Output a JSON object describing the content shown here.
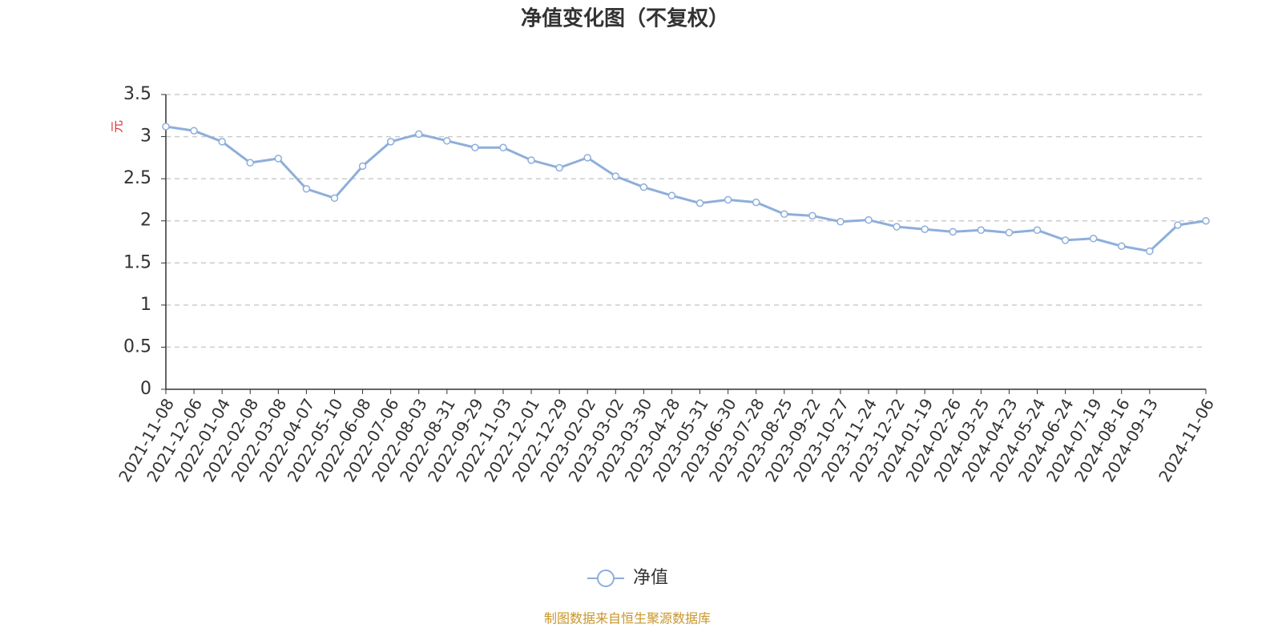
{
  "chart_data": {
    "type": "line",
    "title": "净值变化图（不复权）",
    "y_label": "元",
    "source": "制图数据来自恒生聚源数据库",
    "categories": [
      "2021-11-08",
      "2021-12-06",
      "2022-01-04",
      "2022-02-08",
      "2022-03-08",
      "2022-04-07",
      "2022-05-10",
      "2022-06-08",
      "2022-07-06",
      "2022-08-03",
      "2022-08-31",
      "2022-09-29",
      "2022-11-03",
      "2022-12-01",
      "2022-12-29",
      "2023-02-02",
      "2023-03-02",
      "2023-03-30",
      "2023-04-28",
      "2023-05-31",
      "2023-06-30",
      "2023-07-28",
      "2023-08-25",
      "2023-09-22",
      "2023-10-27",
      "2023-11-24",
      "2023-12-22",
      "2024-01-19",
      "2024-02-26",
      "2024-03-25",
      "2024-04-23",
      "2024-05-24",
      "2024-06-24",
      "2024-07-19",
      "2024-08-16",
      "2024-09-13",
      null,
      "2024-11-06"
    ],
    "series": [
      {
        "name": "净值",
        "color": "#8eaedb",
        "values": [
          3.12,
          3.07,
          2.94,
          2.69,
          2.74,
          2.38,
          2.27,
          2.65,
          2.94,
          3.03,
          2.95,
          2.87,
          2.87,
          2.72,
          2.63,
          2.75,
          2.53,
          2.4,
          2.3,
          2.21,
          2.25,
          2.22,
          2.08,
          2.06,
          1.99,
          2.01,
          1.93,
          1.9,
          1.87,
          1.89,
          1.86,
          1.89,
          1.77,
          1.79,
          1.7,
          1.64,
          1.95,
          2.0
        ]
      }
    ],
    "ylim": [
      0,
      3.5
    ],
    "yticks": [
      0,
      0.5,
      1,
      1.5,
      2,
      2.5,
      3,
      3.5
    ],
    "grid": true
  }
}
